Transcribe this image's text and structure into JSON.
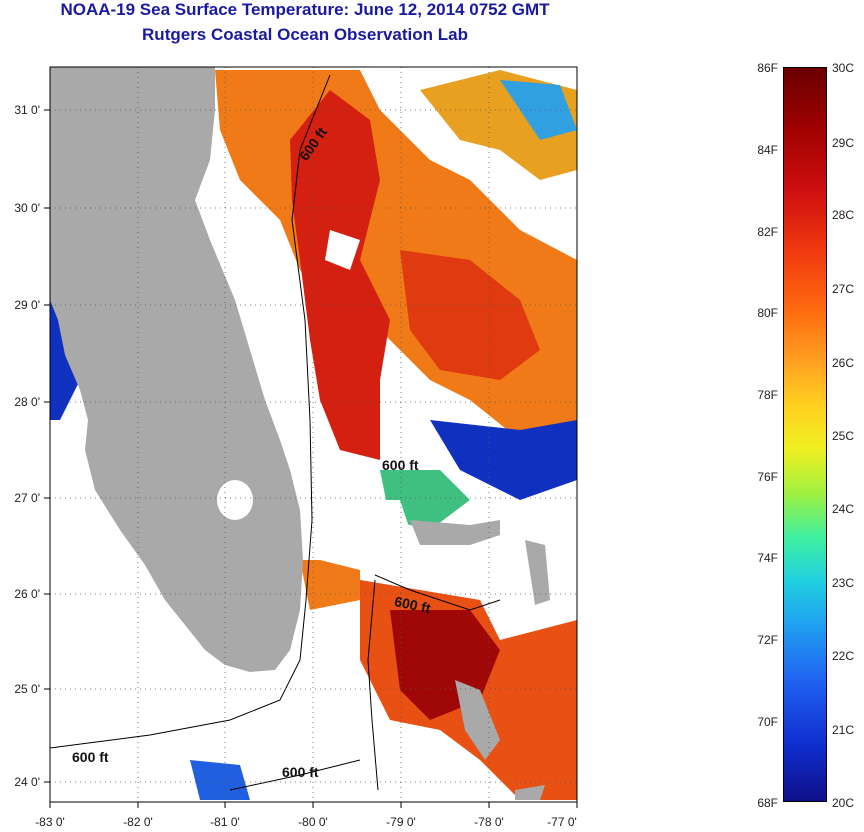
{
  "title": {
    "line1": "NOAA-19 Sea Surface Temperature:  June 12, 2014 0752 GMT",
    "line2": "Rutgers Coastal Ocean Observation Lab"
  },
  "map": {
    "lon_labels": [
      "-83 0'",
      "-82 0'",
      "-81 0'",
      "-80 0'",
      "-79 0'",
      "-78 0'",
      "-77 0'"
    ],
    "lat_labels": [
      "31 0'",
      "30 0'",
      "29 0'",
      "28 0'",
      "27 0'",
      "26 0'",
      "25 0'",
      "24 0'"
    ],
    "contour_label": "600 ft",
    "colors": {
      "land": "#a9a9a9",
      "cloud": "#ffffff",
      "warm_water": "#d02010",
      "hot_water": "#a00808"
    }
  },
  "colorbar": {
    "fahrenheit_ticks": [
      "86F",
      "84F",
      "82F",
      "80F",
      "78F",
      "76F",
      "74F",
      "72F",
      "70F",
      "68F"
    ],
    "celsius_ticks": [
      "30C",
      "29C",
      "28C",
      "27C",
      "26C",
      "25C",
      "24C",
      "23C",
      "22C",
      "21C",
      "20C"
    ]
  }
}
